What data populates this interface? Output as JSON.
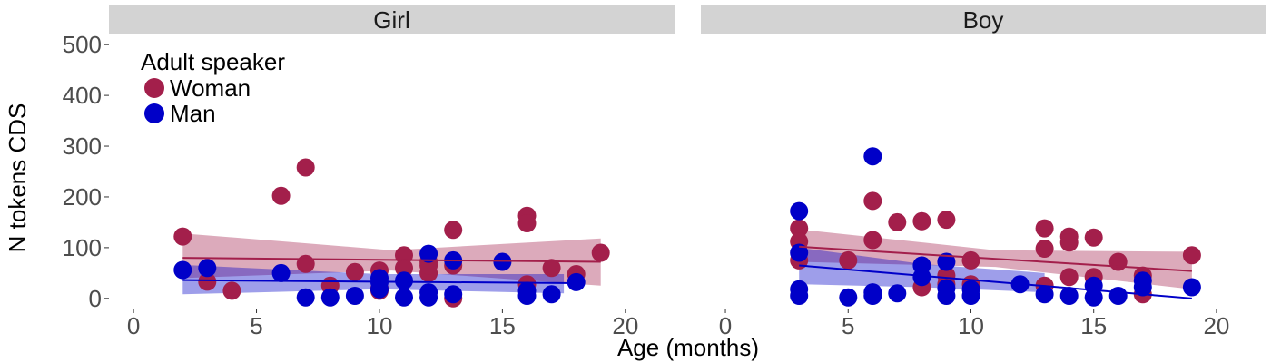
{
  "chart_data": {
    "type": "scatter",
    "xlabel": "Age (months)",
    "ylabel": "N tokens CDS",
    "xlim": [
      -1,
      22
    ],
    "ylim": [
      -20,
      520
    ],
    "x_ticks": [
      0,
      5,
      10,
      15,
      20
    ],
    "y_ticks": [
      0,
      100,
      200,
      300,
      400,
      500
    ],
    "grid": false,
    "legend": {
      "title": "Adult speaker",
      "placement": "top-left",
      "entries": [
        "Woman",
        "Man"
      ]
    },
    "colors": {
      "Woman": "#a31f4b",
      "Man": "#0000c8",
      "woman_band": "rgba(163,31,75,0.38)",
      "man_band": "rgba(0,0,200,0.38)",
      "strip": "#d3d3d3"
    },
    "panels": [
      {
        "label": "Girl",
        "series": [
          {
            "name": "Woman",
            "points": [
              [
                2,
                122
              ],
              [
                3,
                33
              ],
              [
                4,
                15
              ],
              [
                6,
                202
              ],
              [
                7,
                258
              ],
              [
                7,
                68
              ],
              [
                8,
                25
              ],
              [
                9,
                52
              ],
              [
                10,
                55
              ],
              [
                10,
                20
              ],
              [
                10,
                15
              ],
              [
                11,
                85
              ],
              [
                11,
                60
              ],
              [
                12,
                72
              ],
              [
                12,
                50
              ],
              [
                12,
                65
              ],
              [
                13,
                135
              ],
              [
                13,
                65
              ],
              [
                13,
                0
              ],
              [
                16,
                163
              ],
              [
                16,
                148
              ],
              [
                16,
                28
              ],
              [
                17,
                60
              ],
              [
                18,
                48
              ],
              [
                19,
                90
              ]
            ],
            "trend": {
              "x": [
                2,
                19
              ],
              "y": [
                80,
                72
              ]
            },
            "band": {
              "x": [
                2,
                10.5,
                19
              ],
              "lower": [
                40,
                55,
                25
              ],
              "upper": [
                128,
                95,
                118
              ]
            }
          },
          {
            "name": "Man",
            "points": [
              [
                2,
                56
              ],
              [
                3,
                60
              ],
              [
                6,
                50
              ],
              [
                7,
                2
              ],
              [
                8,
                2
              ],
              [
                9,
                5
              ],
              [
                10,
                40
              ],
              [
                10,
                32
              ],
              [
                10,
                18
              ],
              [
                11,
                35
              ],
              [
                11,
                2
              ],
              [
                12,
                88
              ],
              [
                12,
                12
              ],
              [
                12,
                2
              ],
              [
                13,
                75
              ],
              [
                13,
                8
              ],
              [
                15,
                72
              ],
              [
                16,
                15
              ],
              [
                16,
                5
              ],
              [
                17,
                8
              ],
              [
                18,
                32
              ]
            ],
            "trend": {
              "x": [
                2,
                18
              ],
              "y": [
                36,
                30
              ]
            },
            "band": {
              "x": [
                2,
                10,
                17.5
              ],
              "lower": [
                8,
                18,
                10
              ],
              "upper": [
                66,
                48,
                48
              ]
            }
          }
        ]
      },
      {
        "label": "Boy",
        "series": [
          {
            "name": "Woman",
            "points": [
              [
                3,
                138
              ],
              [
                3,
                112
              ],
              [
                3,
                75
              ],
              [
                5,
                75
              ],
              [
                6,
                192
              ],
              [
                6,
                115
              ],
              [
                7,
                150
              ],
              [
                8,
                152
              ],
              [
                8,
                22
              ],
              [
                9,
                155
              ],
              [
                9,
                45
              ],
              [
                9,
                28
              ],
              [
                10,
                75
              ],
              [
                10,
                28
              ],
              [
                13,
                138
              ],
              [
                13,
                98
              ],
              [
                13,
                25
              ],
              [
                14,
                122
              ],
              [
                14,
                110
              ],
              [
                14,
                42
              ],
              [
                15,
                120
              ],
              [
                15,
                42
              ],
              [
                16,
                72
              ],
              [
                17,
                45
              ],
              [
                17,
                8
              ],
              [
                19,
                85
              ]
            ],
            "trend": {
              "x": [
                3,
                19
              ],
              "y": [
                102,
                54
              ]
            },
            "band": {
              "x": [
                3,
                11,
                19
              ],
              "lower": [
                72,
                62,
                18
              ],
              "upper": [
                136,
                95,
                92
              ]
            }
          },
          {
            "name": "Man",
            "points": [
              [
                3,
                172
              ],
              [
                3,
                90
              ],
              [
                3,
                18
              ],
              [
                3,
                5
              ],
              [
                5,
                2
              ],
              [
                6,
                280
              ],
              [
                6,
                12
              ],
              [
                6,
                5
              ],
              [
                7,
                10
              ],
              [
                8,
                65
              ],
              [
                8,
                42
              ],
              [
                9,
                72
              ],
              [
                9,
                20
              ],
              [
                9,
                5
              ],
              [
                10,
                18
              ],
              [
                10,
                5
              ],
              [
                12,
                28
              ],
              [
                13,
                8
              ],
              [
                14,
                5
              ],
              [
                15,
                25
              ],
              [
                15,
                2
              ],
              [
                16,
                5
              ],
              [
                17,
                35
              ],
              [
                17,
                22
              ],
              [
                19,
                22
              ]
            ],
            "trend": {
              "x": [
                3,
                19
              ],
              "y": [
                65,
                0
              ]
            },
            "band": {
              "x": [
                3,
                8,
                13
              ],
              "lower": [
                28,
                22,
                12
              ],
              "upper": [
                100,
                68,
                50
              ]
            }
          }
        ]
      }
    ]
  }
}
